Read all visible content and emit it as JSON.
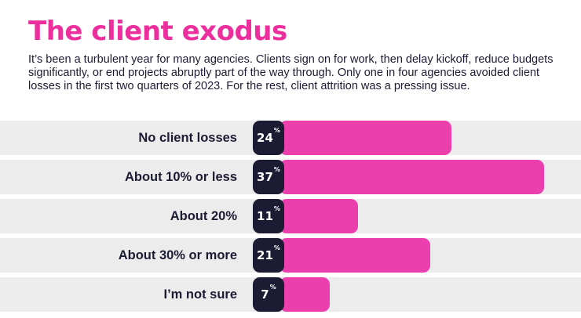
{
  "header": {
    "title": "The client exodus",
    "subtitle": "It’s been a turbulent year for many agencies. Clients sign on for work, then delay kickoff, reduce budgets significantly, or end projects abruptly part of the way through. Only one in four agencies avoided client losses in the first two quarters of 2023. For the rest, client attrition was a pressing issue."
  },
  "colors": {
    "title": "#ec2f9d",
    "bar": "#ec3fae",
    "label_box": "#1b1b33",
    "row_background": "#ececec"
  },
  "chart_data": {
    "type": "bar",
    "orientation": "horizontal",
    "title": "The client exodus",
    "categories": [
      "No client losses",
      "About 10% or less",
      "About 20%",
      "About 30% or more",
      "I’m not sure"
    ],
    "values": [
      24,
      37,
      11,
      21,
      7
    ],
    "value_suffix": "%",
    "grid": false
  }
}
